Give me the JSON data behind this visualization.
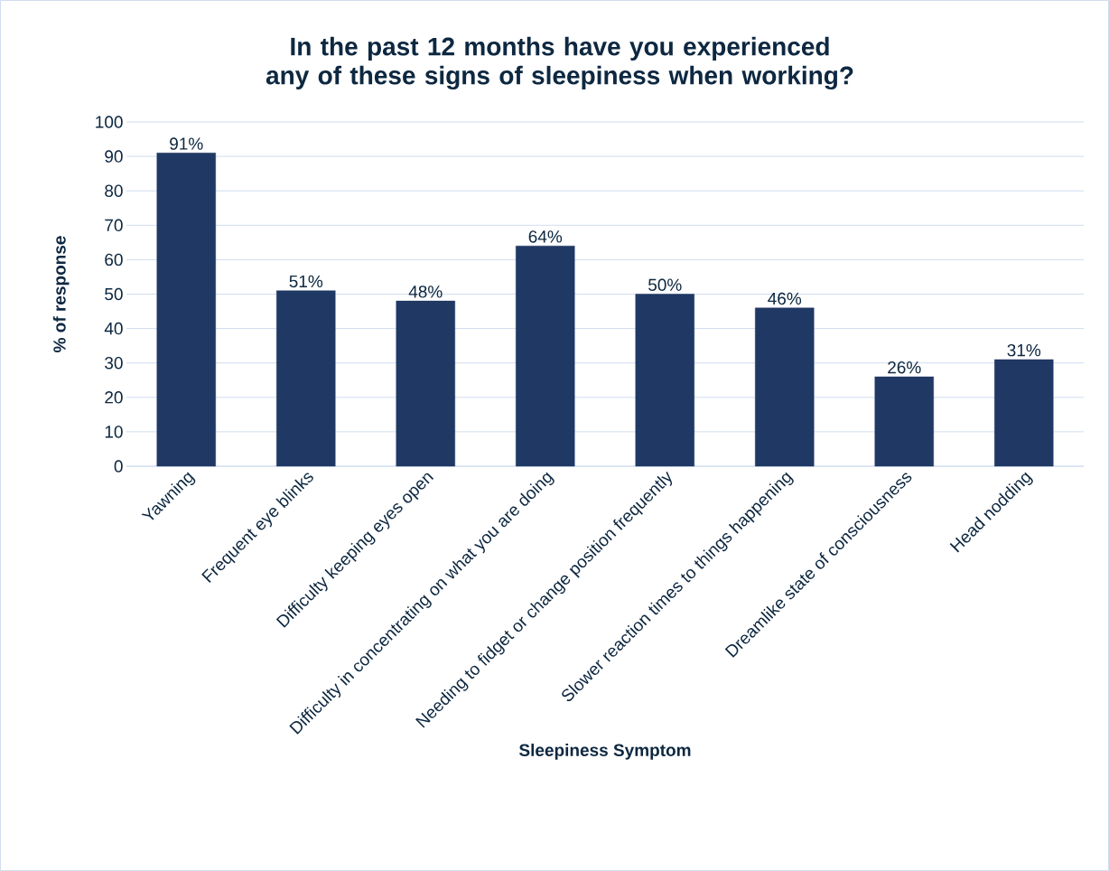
{
  "chart_data": {
    "type": "bar",
    "title": "In the past 12 months have you experienced any of these signs of sleepiness when working?",
    "xlabel": "Sleepiness Symptom",
    "ylabel": "% of response",
    "categories": [
      "Yawning",
      "Frequent eye blinks",
      "Difficulty keeping eyes open",
      "Difficulty in concentrating on what you are doing",
      "Needing to fidget or change position frequently",
      "Slower reaction times to things happening",
      "Dreamlike state of consciousness",
      "Head nodding"
    ],
    "values": [
      91,
      51,
      48,
      64,
      50,
      46,
      26,
      31
    ],
    "value_labels": [
      "91%",
      "51%",
      "48%",
      "64%",
      "50%",
      "46%",
      "26%",
      "31%"
    ],
    "color": "#203864",
    "ylim": [
      0,
      100
    ],
    "yticks": [
      0,
      10,
      20,
      30,
      40,
      50,
      60,
      70,
      80,
      90,
      100
    ],
    "grid": "y"
  }
}
